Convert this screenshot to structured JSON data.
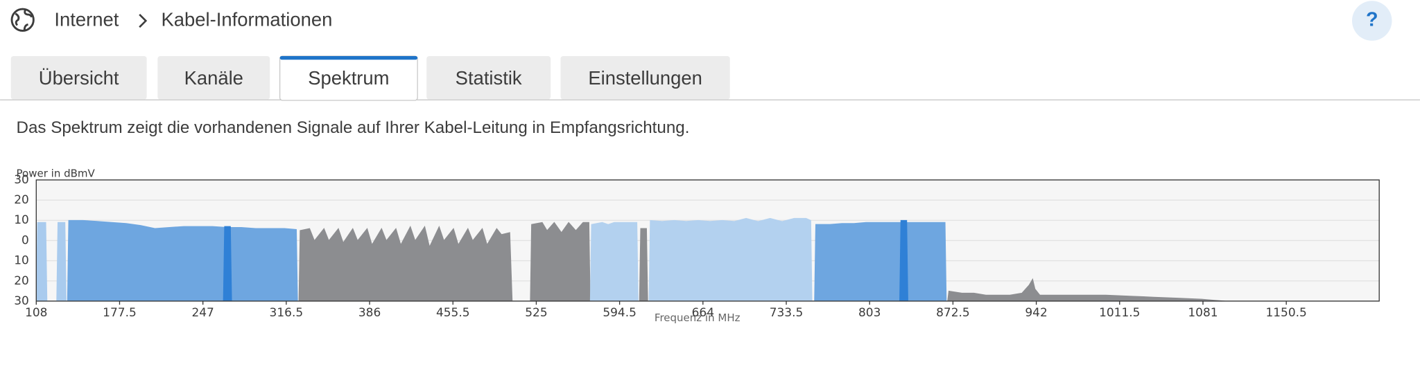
{
  "header": {
    "breadcrumb": [
      "Internet",
      "Kabel-Informationen"
    ],
    "help": "?"
  },
  "tabs": [
    "Übersicht",
    "Kanäle",
    "Spektrum",
    "Statistik",
    "Einstellungen"
  ],
  "active_tab": 2,
  "description": "Das Spektrum zeigt die vorhandenen Signale auf Ihrer Kabel-Leitung in Empfangsrichtung.",
  "chart_data": {
    "type": "area",
    "y_label": "Power in dBmV",
    "x_label": "Frequenz in MHz",
    "xlim": [
      108,
      1228
    ],
    "ylim": [
      -30,
      30
    ],
    "yticks": [
      30,
      20,
      10,
      0,
      {
        "value": -10,
        "label": "10"
      },
      {
        "value": -20,
        "label": "20"
      },
      {
        "value": -30,
        "label": "30"
      }
    ],
    "xticks": [
      108,
      177.5,
      247,
      316.5,
      386,
      455.5,
      525,
      594.5,
      664,
      733.5,
      803,
      872.5,
      942,
      1011.5,
      1081,
      1150.5
    ],
    "grid": true,
    "series": [
      {
        "color": "#a9cbee",
        "x": [
          108,
          109,
          112,
          116,
          117
        ],
        "values": [
          -30,
          9,
          9,
          9,
          -30
        ]
      },
      {
        "color": "#a9cbee",
        "x": [
          125,
          126,
          132,
          133
        ],
        "values": [
          -30,
          9,
          9,
          -30
        ]
      },
      {
        "color": "#6ea6e0",
        "x": [
          134,
          135,
          147,
          159,
          171,
          183,
          195,
          207,
          219,
          231,
          243,
          255,
          267,
          279,
          291,
          303,
          315,
          325,
          326
        ],
        "values": [
          -30,
          10,
          10,
          9.5,
          9,
          8.5,
          7.5,
          6,
          6.5,
          7,
          7,
          7,
          6.5,
          6.5,
          6,
          6,
          6,
          5.5,
          -30
        ]
      },
      {
        "color": "#2f80d6",
        "x": [
          264,
          265,
          270,
          271
        ],
        "values": [
          -30,
          7,
          7,
          -30
        ]
      },
      {
        "color": "#8c8d90",
        "x": [
          327,
          328,
          336,
          340,
          348,
          352,
          360,
          364,
          372,
          376,
          384,
          388,
          396,
          400,
          408,
          412,
          420,
          424,
          432,
          436,
          444,
          448,
          456,
          460,
          468,
          472,
          480,
          484,
          492,
          496,
          503,
          505
        ],
        "values": [
          -30,
          5,
          6,
          0,
          6,
          0,
          6,
          -1,
          6,
          0,
          6,
          -2,
          6,
          0,
          6,
          -2,
          7,
          0,
          7,
          -3,
          7,
          0,
          6,
          -2,
          6,
          0,
          6,
          -2,
          6,
          3,
          4,
          -30
        ]
      },
      {
        "color": "#8c8d90",
        "x": [
          520,
          521,
          530,
          534,
          540,
          546,
          552,
          558,
          564,
          569,
          570
        ],
        "values": [
          -30,
          8,
          9,
          5,
          9,
          4,
          9,
          5,
          9,
          9,
          -30
        ]
      },
      {
        "color": "#b3d1ef",
        "x": [
          570,
          571,
          580,
          585,
          590,
          600,
          609,
          610
        ],
        "values": [
          -30,
          8,
          9,
          8,
          9,
          9,
          9,
          -30
        ]
      },
      {
        "color": "#8c8d90",
        "x": [
          611,
          612,
          617,
          618
        ],
        "values": [
          -30,
          6,
          6,
          -30
        ]
      },
      {
        "color": "#b3d1ef",
        "x": [
          619,
          620,
          630,
          640,
          650,
          660,
          670,
          680,
          690,
          700,
          710,
          720,
          730,
          740,
          750,
          754,
          755
        ],
        "values": [
          -30,
          10,
          9.5,
          10,
          9.5,
          10,
          9.5,
          10,
          9.5,
          11,
          9.5,
          11,
          9.5,
          11,
          11,
          10,
          -30
        ]
      },
      {
        "color": "#6ea6e0",
        "x": [
          757,
          758,
          770,
          780,
          790,
          800,
          810,
          820,
          830,
          840,
          850,
          860,
          866,
          867
        ],
        "values": [
          -30,
          8,
          8,
          8.5,
          8.5,
          9,
          9,
          9,
          9,
          9,
          9,
          9,
          9,
          -30
        ]
      },
      {
        "color": "#2f80d6",
        "x": [
          828,
          829,
          834,
          835
        ],
        "values": [
          -30,
          10,
          10,
          -30
        ]
      },
      {
        "color": "#8c8d90",
        "x": [
          868,
          869,
          880,
          890,
          900,
          910,
          920,
          930,
          936,
          939,
          941,
          945,
          960,
          980,
          1000,
          1020,
          1040,
          1060,
          1080,
          1090,
          1100
        ],
        "values": [
          -30,
          -25,
          -26,
          -26,
          -27,
          -27,
          -27,
          -26,
          -22,
          -19,
          -24,
          -27,
          -27,
          -27,
          -27,
          -27.5,
          -28,
          -28.5,
          -29,
          -29.5,
          -30
        ]
      }
    ]
  }
}
